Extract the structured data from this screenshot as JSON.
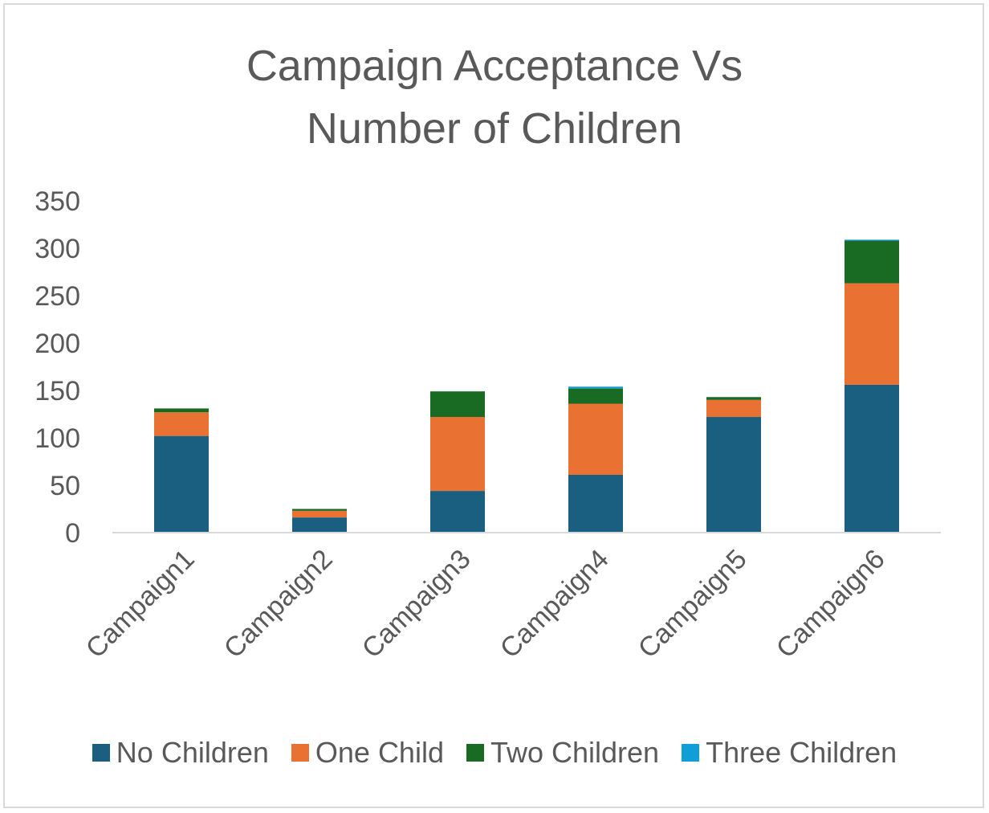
{
  "chart_data": {
    "type": "bar",
    "stacked": true,
    "title_line1": "Campaign Acceptance Vs",
    "title_line2": "Number of Children",
    "xlabel": "",
    "ylabel": "",
    "ylim": [
      0,
      350
    ],
    "yticks": [
      "0",
      "50",
      "100",
      "150",
      "200",
      "250",
      "300",
      "350"
    ],
    "categories": [
      "Campaign1",
      "Campaign2",
      "Campaign3",
      "Campaign4",
      "Campaign5",
      "Campaign6"
    ],
    "series": [
      {
        "name": "No Children",
        "color": "#1a5f7f",
        "values": [
          102,
          16,
          44,
          61,
          122,
          156
        ]
      },
      {
        "name": "One Child",
        "color": "#e97132",
        "values": [
          25,
          7,
          78,
          75,
          18,
          107
        ]
      },
      {
        "name": "Two Children",
        "color": "#196b24",
        "values": [
          4,
          2,
          27,
          16,
          3,
          45
        ]
      },
      {
        "name": "Three Children",
        "color": "#0f9ed5",
        "values": [
          0,
          0,
          0,
          2,
          0,
          1
        ]
      }
    ],
    "grid": false,
    "legend_position": "bottom"
  }
}
